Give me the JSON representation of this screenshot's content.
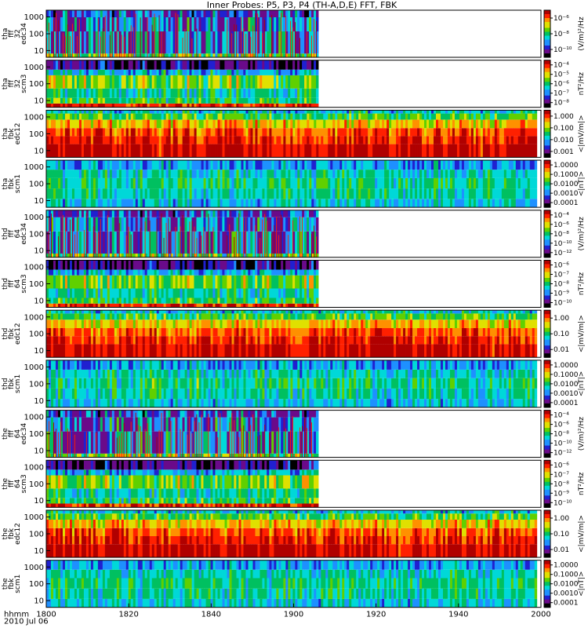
{
  "chart_data": {
    "type": "heatmap",
    "title": "Inner Probes: P5, P3, P4 (TH-A,D,E) FFT, FBK",
    "x_axis": {
      "range": [
        1800,
        2000
      ],
      "tick_labels": [
        "1800",
        "1820",
        "1840",
        "1900",
        "1920",
        "1940",
        "2000"
      ],
      "tick_values": [
        0,
        20,
        40,
        60,
        80,
        100,
        120
      ],
      "label_lines": [
        "hhmm",
        "2010 Jul 06"
      ]
    },
    "panels": [
      {
        "probe": "tha",
        "label_lines": [
          "tha",
          "fff",
          "32",
          "edc34"
        ],
        "y_ticks": [
          "10",
          "100",
          "1000"
        ],
        "units": "(V/m)²/Hz",
        "cbar_ticks": [
          "10⁻¹⁰",
          "10⁻⁸",
          "10⁻⁶"
        ],
        "kind": "spiky",
        "data_end": 66
      },
      {
        "probe": "tha",
        "label_lines": [
          "tha",
          "fff",
          "32",
          "scm3"
        ],
        "y_ticks": [
          "10",
          "100",
          "1000"
        ],
        "units": "nT²/Hz",
        "cbar_ticks": [
          "10⁻⁸",
          "10⁻⁷",
          "10⁻⁶",
          "10⁻⁵",
          "10⁻⁴"
        ],
        "kind": "scm",
        "data_end": 66
      },
      {
        "probe": "tha",
        "label_lines": [
          "tha",
          "fbk",
          "edc12"
        ],
        "y_ticks": [
          "10",
          "100",
          "1000"
        ],
        "units": "<|mV/m|>",
        "cbar_ticks": [
          "0.001",
          "0.010",
          "0.100",
          "1.000"
        ],
        "kind": "fbk_e",
        "data_end": 119
      },
      {
        "probe": "tha",
        "label_lines": [
          "tha",
          "fbk",
          "scm1"
        ],
        "y_ticks": [
          "10",
          "100",
          "1000"
        ],
        "units": "<|nT|>",
        "cbar_ticks": [
          "0.0001",
          "0.0010",
          "0.0100",
          "0.1000",
          "1.0000"
        ],
        "kind": "fbk_b",
        "data_end": 119
      },
      {
        "probe": "thd",
        "label_lines": [
          "thd",
          "fff",
          "64",
          "edc34"
        ],
        "y_ticks": [
          "10",
          "100",
          "1000"
        ],
        "units": "(V/m)²/Hz",
        "cbar_ticks": [
          "10⁻¹²",
          "10⁻¹⁰",
          "10⁻⁸",
          "10⁻⁶",
          "10⁻⁴"
        ],
        "kind": "spiky",
        "data_end": 66
      },
      {
        "probe": "thd",
        "label_lines": [
          "thd",
          "fff",
          "64",
          "scm3"
        ],
        "y_ticks": [
          "10",
          "100",
          "1000"
        ],
        "units": "nT²/Hz",
        "cbar_ticks": [
          "10⁻¹⁰",
          "10⁻⁹",
          "10⁻⁸",
          "10⁻⁷",
          "10⁻⁶"
        ],
        "kind": "scm",
        "data_end": 66
      },
      {
        "probe": "thd",
        "label_lines": [
          "thd",
          "fbk",
          "edc12"
        ],
        "y_ticks": [
          "10",
          "100",
          "1000"
        ],
        "units": "<|mV/m|>",
        "cbar_ticks": [
          "0.01",
          "0.10",
          "1.00"
        ],
        "kind": "fbk_e",
        "data_end": 119
      },
      {
        "probe": "thd",
        "label_lines": [
          "thd",
          "fbk",
          "scm1"
        ],
        "y_ticks": [
          "10",
          "100",
          "1000"
        ],
        "units": "<|nT|>",
        "cbar_ticks": [
          "0.0001",
          "0.0010",
          "0.0100",
          "0.1000",
          "1.0000"
        ],
        "kind": "fbk_b",
        "data_end": 119
      },
      {
        "probe": "the",
        "label_lines": [
          "the",
          "fff",
          "64",
          "edc34"
        ],
        "y_ticks": [
          "10",
          "100",
          "1000"
        ],
        "units": "(V/m)²/Hz",
        "cbar_ticks": [
          "10⁻¹²",
          "10⁻¹⁰",
          "10⁻⁸",
          "10⁻⁶",
          "10⁻⁴"
        ],
        "kind": "spiky",
        "data_end": 66
      },
      {
        "probe": "the",
        "label_lines": [
          "the",
          "fff",
          "64",
          "scm3"
        ],
        "y_ticks": [
          "10",
          "100",
          "1000"
        ],
        "units": "nT²/Hz",
        "cbar_ticks": [
          "10⁻¹⁰",
          "10⁻⁹",
          "10⁻⁸",
          "10⁻⁷",
          "10⁻⁶"
        ],
        "kind": "scm",
        "data_end": 66
      },
      {
        "probe": "the",
        "label_lines": [
          "the",
          "fbk",
          "edc12"
        ],
        "y_ticks": [
          "10",
          "100",
          "1000"
        ],
        "units": "<|mV/m|>",
        "cbar_ticks": [
          "0.01",
          "0.10",
          "1.00"
        ],
        "kind": "fbk_e",
        "data_end": 119
      },
      {
        "probe": "the",
        "label_lines": [
          "the",
          "fbk",
          "scm1"
        ],
        "y_ticks": [
          "10",
          "100",
          "1000"
        ],
        "units": "<|nT|>",
        "cbar_ticks": [
          "0.0001",
          "0.0010",
          "0.0100",
          "0.1000",
          "1.0000"
        ],
        "kind": "fbk_b",
        "data_end": 119
      }
    ],
    "colorscale": [
      "#000000",
      "#6a0a8a",
      "#2020d0",
      "#1e90ff",
      "#00d8d8",
      "#00c060",
      "#60d000",
      "#e0e000",
      "#ff9000",
      "#ff2000",
      "#b00000"
    ],
    "grid": false,
    "legend": "none"
  }
}
